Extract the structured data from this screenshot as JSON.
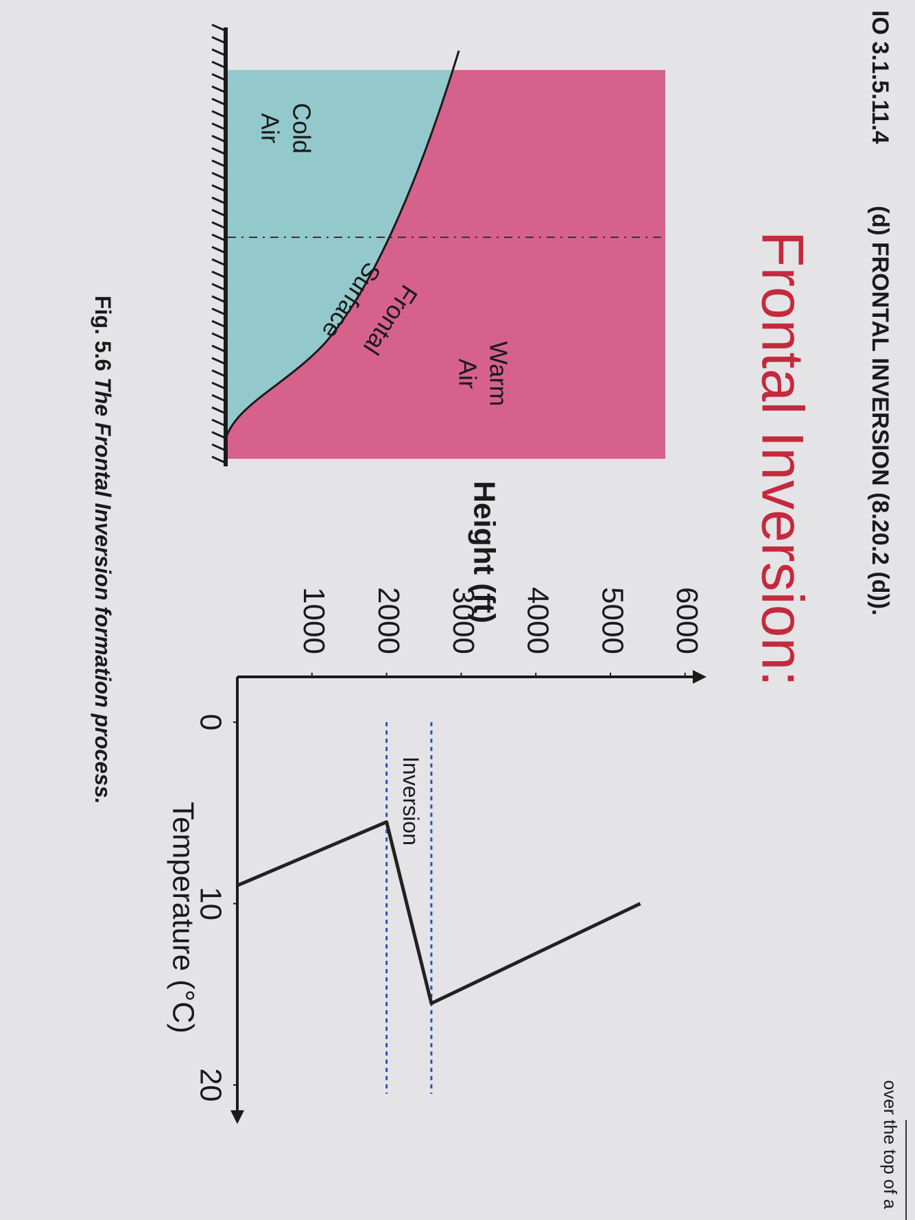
{
  "header": {
    "code": "IO 3.1.5.11.4",
    "section": "(d) FRONTAL INVERSION (8.20.2 (d))."
  },
  "title": "Frontal Inversion:",
  "diagram": {
    "warm_air": [
      "Warm",
      "Air"
    ],
    "cold_air": [
      "Cold",
      "Air"
    ],
    "frontal_surface": [
      "Frontal",
      "Surface"
    ]
  },
  "chart_data": {
    "type": "line",
    "y_label": "Height (ft)",
    "x_label": "Temperature (°C)",
    "x": [
      9,
      5.5,
      15.5,
      10
    ],
    "values": [
      0,
      2000,
      2600,
      5400
    ],
    "color": "#222222",
    "xlim": [
      -2.5,
      22
    ],
    "xticks": [
      0,
      10,
      20
    ],
    "ylim": [
      0,
      6250
    ],
    "yticks": [
      1000,
      2000,
      3000,
      4000,
      5000,
      6000
    ],
    "annotations": [
      {
        "text": "Inversion",
        "range": [
          2000,
          2600
        ],
        "color": "#3050c0"
      }
    ]
  },
  "caption": {
    "label": "Fig. 5.6",
    "text": "The Frontal Inversion formation process."
  },
  "page_fragment": "over the top of a"
}
